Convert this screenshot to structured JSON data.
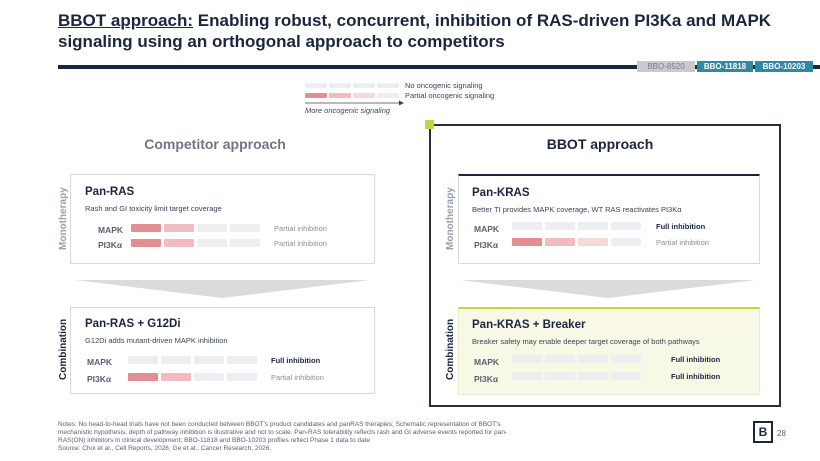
{
  "title": {
    "prefix": "BBOT approach:",
    "rest": " Enabling robust, concurrent, inhibition of RAS-driven PI3Ka and MAPK signaling using an orthogonal approach to competitors"
  },
  "tabs": [
    "BBO-8520",
    "BBO-11818",
    "BBO-10203"
  ],
  "legend": {
    "none": "No oncogenic signaling",
    "partial": "Partial oncogenic signaling",
    "more": "More oncogenic signaling"
  },
  "competitor": {
    "heading": "Competitor approach",
    "mono_card": {
      "title": "Pan-RAS",
      "subtitle": "Rash and GI toxicity limit target coverage",
      "rows": [
        {
          "label": "MAPK",
          "status": "Partial inhibition"
        },
        {
          "label": "PI3Kα",
          "status": "Partial inhibition"
        }
      ]
    },
    "combo_card": {
      "title": "Pan-RAS + G12Di",
      "subtitle": "G12Di adds mutant-driven MAPK inhibition",
      "rows": [
        {
          "label": "MAPK",
          "status": "Full inhibition"
        },
        {
          "label": "PI3Kα",
          "status": "Partial inhibition"
        }
      ]
    }
  },
  "bbot": {
    "heading": "BBOT approach",
    "mono_card": {
      "title": "Pan-KRAS",
      "subtitle": "Better TI provides MAPK coverage, WT RAS reactivates PI3Kα",
      "rows": [
        {
          "label": "MAPK",
          "status": "Full inhibition"
        },
        {
          "label": "PI3Kα",
          "status": "Partial inhibition"
        }
      ]
    },
    "combo_card": {
      "title": "Pan-KRAS + Breaker",
      "subtitle": "Breaker safety may enable deeper target coverage of both pathways",
      "rows": [
        {
          "label": "MAPK",
          "status": "Full inhibition"
        },
        {
          "label": "PI3Kα",
          "status": "Full inhibition"
        }
      ]
    }
  },
  "side_labels": {
    "mono": "Monotherapy",
    "combo": "Combination"
  },
  "notes": {
    "line1": "Notes: No head-to-head trials have not been conducted between BBOT's product candidates and panRAS therapies; Schematic representation of BBOT's",
    "line2": "mechanistic hypothesis; depth of pathway inhibition is illustrative and not to scale. Pan-RAS tolerability reflects rash and GI adverse events reported for pan-",
    "line3": "RAS(ON) inhibitors in clinical development; BBO-11818 and BBO-10203 profiles reflect Phase 1 data to date",
    "line4": "Source: Choi et al., Cell Reports, 2026; Ge et al., Cancer Research, 2026."
  },
  "logo": "B",
  "page_number": "28",
  "colors": {
    "navy": "#1b2540",
    "teal": "#2e8aa3",
    "accent_yellow": "#c7d33a",
    "partial_red": "#e28e93"
  }
}
